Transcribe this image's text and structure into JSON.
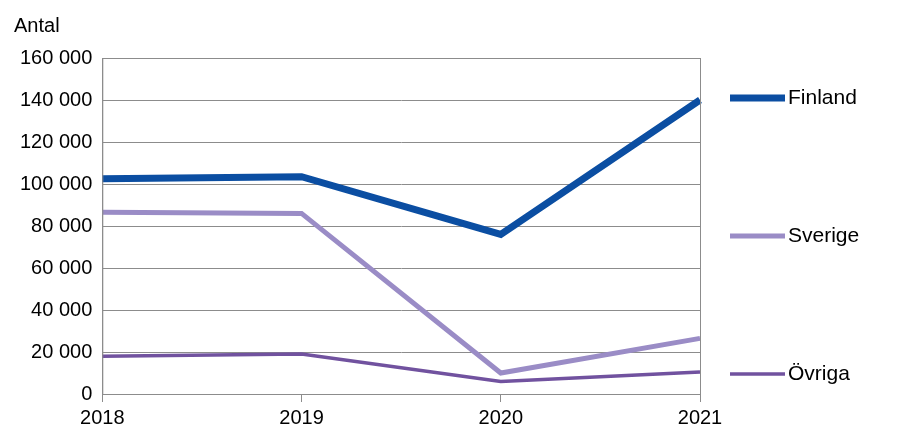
{
  "chart_data": {
    "type": "line",
    "y_label": "Antal",
    "categories": [
      "2018",
      "2019",
      "2020",
      "2021"
    ],
    "series": [
      {
        "name": "Finland",
        "color": "#0b4ea2",
        "values": [
          102500,
          103500,
          76000,
          140000
        ]
      },
      {
        "name": "Sverige",
        "color": "#9a8cc6",
        "values": [
          86500,
          86000,
          10000,
          26500
        ]
      },
      {
        "name": "Övriga",
        "color": "#71529f",
        "values": [
          18000,
          19000,
          6000,
          10500
        ]
      }
    ],
    "ylim": [
      0,
      160000
    ],
    "yticks": [
      {
        "value": 0,
        "label": "0"
      },
      {
        "value": 20000,
        "label": "20 000"
      },
      {
        "value": 40000,
        "label": "40 000"
      },
      {
        "value": 60000,
        "label": "60 000"
      },
      {
        "value": 80000,
        "label": "80 000"
      },
      {
        "value": 100000,
        "label": "100 000"
      },
      {
        "value": 120000,
        "label": "120 000"
      },
      {
        "value": 140000,
        "label": "140 000"
      },
      {
        "value": 160000,
        "label": "160 000"
      }
    ],
    "grid": true,
    "legend": "right"
  }
}
